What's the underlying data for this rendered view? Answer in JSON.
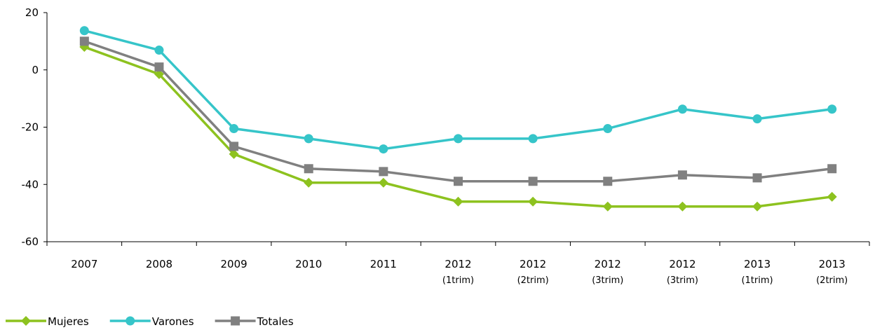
{
  "chart_data": {
    "type": "line",
    "categories": [
      "2007",
      "2008",
      "2009",
      "2010",
      "2011",
      "2012\n(1trim)",
      "2012\n(2trim)",
      "2012\n(3trim)",
      "2012\n(3trim)",
      "2013\n(1trim)",
      "2013\n(2trim)"
    ],
    "series": [
      {
        "name": "Mujeres",
        "color": "#8dc21f",
        "marker": "diamond",
        "values": [
          8,
          -1.5,
          -29.4,
          -39.4,
          -39.4,
          -46,
          -46,
          -47.7,
          -47.7,
          -47.7,
          -44.3
        ]
      },
      {
        "name": "Varones",
        "color": "#36c5c9",
        "marker": "circle",
        "values": [
          13.7,
          6.9,
          -20.5,
          -24,
          -27.6,
          -24,
          -24,
          -20.5,
          -13.7,
          -17.1,
          -13.7
        ]
      },
      {
        "name": "Totales",
        "color": "#808080",
        "marker": "square",
        "values": [
          10,
          1,
          -26.7,
          -34.5,
          -35.5,
          -38.9,
          -38.9,
          -38.9,
          -36.7,
          -37.7,
          -34.5
        ]
      }
    ],
    "ylim": [
      -60,
      20
    ],
    "yticks": [
      -60,
      -40,
      -20,
      0,
      20
    ],
    "grid": false,
    "legend": "bottom-left"
  }
}
